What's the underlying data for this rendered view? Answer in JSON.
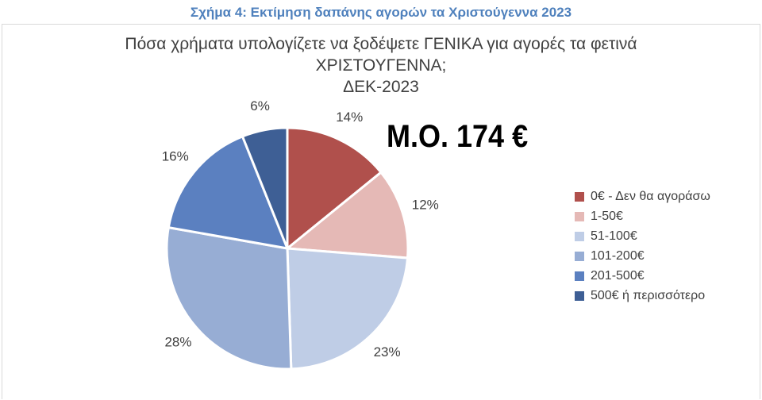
{
  "figure_caption": "Σχήμα 4: Εκτίμηση δαπάνης αγορών τα Χριστούγεννα 2023",
  "average_label": "Μ.Ο. 174 €",
  "chart_data": {
    "type": "pie",
    "title_lines": [
      "Πόσα χρήματα υπολογίζετε να ξοδέψετε ΓΕΝΙΚΑ για αγορές τα φετινά",
      "ΧΡΙΣΤΟΥΓΕΝΝΑ;",
      "ΔΕΚ-2023"
    ],
    "categories": [
      "0€ - Δεν θα αγοράσω",
      "1-50€",
      "51-100€",
      "101-200€",
      "201-500€",
      "500€ ή περισσότερο"
    ],
    "values": [
      14,
      12,
      23,
      28,
      16,
      6
    ],
    "data_labels": [
      "14%",
      "12%",
      "23%",
      "28%",
      "16%",
      "6%"
    ],
    "colors": [
      "#b0504c",
      "#e5b9b6",
      "#bfcde6",
      "#97add4",
      "#5b80c0",
      "#3e5f95"
    ],
    "legend_position": "right",
    "start_angle_deg": 0,
    "direction": "clockwise"
  }
}
